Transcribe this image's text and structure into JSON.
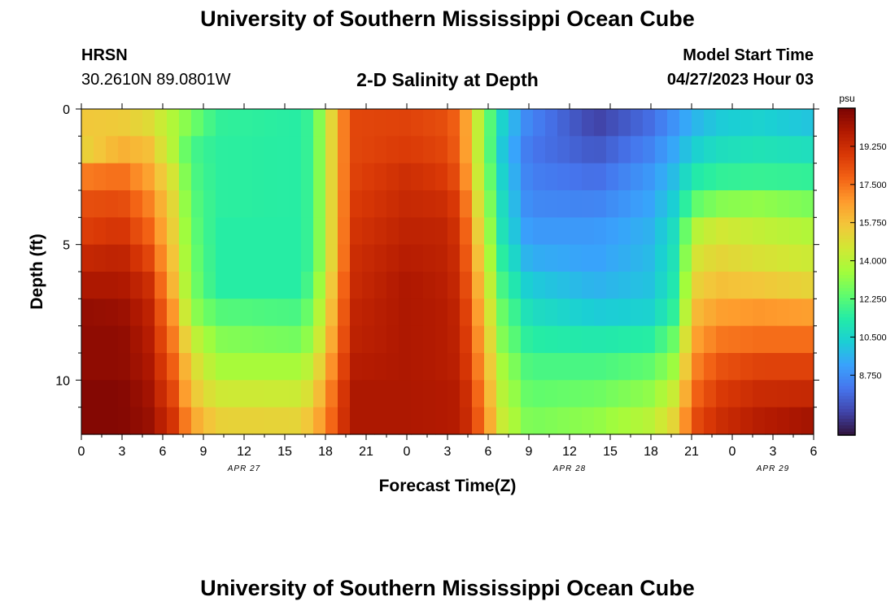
{
  "header": {
    "title": "University of Southern Mississippi Ocean Cube",
    "station": "HRSN",
    "coords": "30.2610N  89.0801W",
    "chart_title": "2-D Salinity at Depth",
    "model_start_label": "Model Start Time",
    "model_start_value": "04/27/2023 Hour 03"
  },
  "footer": {
    "title": "University of Southern Mississippi Ocean Cube"
  },
  "colors": {
    "scale": [
      "#30123b",
      "#4145ab",
      "#4675ed",
      "#39a2fc",
      "#1bcfd4",
      "#24eca6",
      "#61fc6c",
      "#a4fc3b",
      "#d1e834",
      "#f3c63a",
      "#fe9b2d",
      "#f36315",
      "#d93806",
      "#b11901",
      "#7a0403"
    ]
  },
  "chart_data": {
    "type": "heatmap",
    "title": "2-D Salinity at Depth",
    "xlabel": "Forecast Time(Z)",
    "ylabel": "Depth (ft)",
    "x_tick_labels": [
      "0",
      "3",
      "6",
      "9",
      "12",
      "15",
      "18",
      "21",
      "0",
      "3",
      "6",
      "9",
      "12",
      "15",
      "18",
      "21",
      "0",
      "3",
      "6"
    ],
    "date_labels": [
      {
        "text": "APR 27",
        "hour": 12
      },
      {
        "text": "APR 28",
        "hour": 36
      },
      {
        "text": "APR 29",
        "hour": 51
      }
    ],
    "y_ticks": [
      0,
      5,
      10
    ],
    "ylim": [
      0,
      12
    ],
    "x_range_hours": [
      0,
      54
    ],
    "depth_levels": [
      0,
      1,
      2,
      3,
      4,
      5,
      6,
      7,
      8,
      9,
      10,
      11
    ],
    "colorbar": {
      "unit": "psu",
      "min": 6.0,
      "max": 21.0,
      "ticks": [
        "19.250",
        "17.500",
        "15.750",
        "14.000",
        "12.250",
        "10.500",
        "8.750"
      ]
    },
    "salinity_keyframes": [
      {
        "hour": 0,
        "values": [
          15.6,
          15.2,
          17.3,
          18.3,
          18.7,
          19.4,
          20.0,
          20.5,
          20.6,
          20.6,
          20.8,
          20.8
        ]
      },
      {
        "hour": 3,
        "values": [
          15.5,
          16.2,
          17.6,
          18.4,
          19.0,
          19.6,
          20.0,
          20.4,
          20.6,
          20.6,
          20.8,
          20.8
        ]
      },
      {
        "hour": 5,
        "values": [
          15.0,
          15.8,
          16.5,
          17.2,
          17.8,
          18.5,
          19.2,
          19.6,
          19.8,
          20.0,
          20.2,
          20.4
        ]
      },
      {
        "hour": 7,
        "values": [
          13.6,
          13.6,
          14.4,
          14.8,
          15.0,
          15.3,
          15.6,
          16.4,
          17.0,
          17.6,
          18.2,
          18.8
        ]
      },
      {
        "hour": 8,
        "values": [
          12.8,
          12.0,
          12.2,
          12.4,
          12.6,
          12.8,
          13.0,
          13.4,
          14.5,
          15.3,
          15.8,
          16.6
        ]
      },
      {
        "hour": 10,
        "values": [
          11.6,
          11.5,
          11.5,
          11.5,
          11.4,
          11.4,
          11.4,
          12.2,
          13.0,
          13.6,
          14.5,
          15.3
        ]
      },
      {
        "hour": 16,
        "values": [
          11.4,
          11.4,
          11.4,
          11.4,
          11.4,
          11.4,
          11.4,
          12.0,
          12.7,
          13.6,
          14.4,
          15.2
        ]
      },
      {
        "hour": 17,
        "values": [
          11.8,
          11.8,
          11.8,
          11.8,
          11.8,
          11.8,
          12.2,
          12.8,
          13.4,
          14.2,
          15.0,
          15.8
        ]
      },
      {
        "hour": 18,
        "values": [
          14.0,
          14.0,
          14.0,
          14.0,
          14.0,
          14.0,
          14.4,
          14.8,
          15.3,
          16.0,
          16.6,
          17.0
        ]
      },
      {
        "hour": 19,
        "values": [
          16.6,
          16.6,
          16.6,
          16.6,
          16.6,
          16.6,
          17.0,
          17.3,
          17.6,
          18.0,
          18.4,
          18.6
        ]
      },
      {
        "hour": 20,
        "values": [
          18.5,
          18.5,
          18.6,
          18.8,
          19.0,
          19.2,
          19.3,
          19.5,
          19.6,
          19.8,
          20.0,
          20.0
        ]
      },
      {
        "hour": 24,
        "values": [
          18.6,
          18.8,
          19.2,
          19.4,
          19.6,
          19.8,
          20.0,
          20.0,
          20.0,
          20.0,
          20.0,
          20.0
        ]
      },
      {
        "hour": 27,
        "values": [
          18.3,
          18.5,
          18.8,
          19.2,
          19.5,
          19.6,
          19.7,
          19.8,
          19.8,
          19.8,
          19.9,
          19.9
        ]
      },
      {
        "hour": 28,
        "values": [
          17.5,
          17.6,
          18.0,
          18.5,
          18.8,
          19.0,
          19.2,
          19.4,
          19.5,
          19.6,
          19.8,
          19.8
        ]
      },
      {
        "hour": 29,
        "values": [
          14.8,
          14.8,
          15.0,
          15.5,
          16.0,
          16.4,
          16.8,
          17.2,
          17.5,
          17.8,
          18.2,
          18.5
        ]
      },
      {
        "hour": 30,
        "values": [
          12.5,
          12.5,
          12.8,
          13.2,
          13.6,
          14.0,
          14.5,
          15.0,
          15.4,
          15.8,
          16.2,
          16.6
        ]
      },
      {
        "hour": 31,
        "values": [
          10.5,
          10.2,
          10.5,
          10.8,
          11.0,
          11.5,
          12.0,
          12.6,
          13.0,
          13.6,
          14.0,
          14.4
        ]
      },
      {
        "hour": 33,
        "values": [
          8.5,
          8.2,
          8.4,
          8.6,
          9.0,
          9.5,
          10.2,
          10.8,
          11.4,
          12.0,
          12.4,
          12.8
        ]
      },
      {
        "hour": 38,
        "values": [
          7.0,
          7.5,
          8.0,
          8.5,
          9.0,
          9.2,
          9.6,
          10.2,
          11.2,
          12.0,
          12.6,
          13.2
        ]
      },
      {
        "hour": 42,
        "values": [
          8.0,
          8.5,
          9.0,
          9.3,
          9.6,
          9.8,
          10.0,
          10.4,
          11.4,
          12.4,
          13.2,
          14.0
        ]
      },
      {
        "hour": 44,
        "values": [
          9.0,
          9.5,
          10.0,
          10.5,
          11.0,
          11.2,
          11.4,
          11.8,
          12.8,
          13.6,
          14.6,
          15.4
        ]
      },
      {
        "hour": 45,
        "values": [
          9.6,
          10.3,
          11.2,
          12.3,
          13.8,
          14.6,
          15.2,
          15.8,
          16.4,
          17.0,
          17.6,
          18.2
        ]
      },
      {
        "hour": 47,
        "values": [
          10.2,
          10.8,
          11.6,
          13.0,
          14.6,
          15.2,
          15.8,
          16.6,
          17.4,
          18.2,
          18.8,
          19.2
        ]
      },
      {
        "hour": 50,
        "values": [
          10.4,
          11.0,
          11.7,
          13.2,
          14.2,
          14.8,
          15.6,
          16.8,
          17.6,
          18.6,
          19.3,
          19.8
        ]
      },
      {
        "hour": 54,
        "values": [
          10.0,
          10.8,
          11.6,
          12.8,
          13.8,
          14.4,
          15.2,
          16.6,
          17.6,
          18.6,
          19.4,
          20.2
        ]
      }
    ]
  }
}
